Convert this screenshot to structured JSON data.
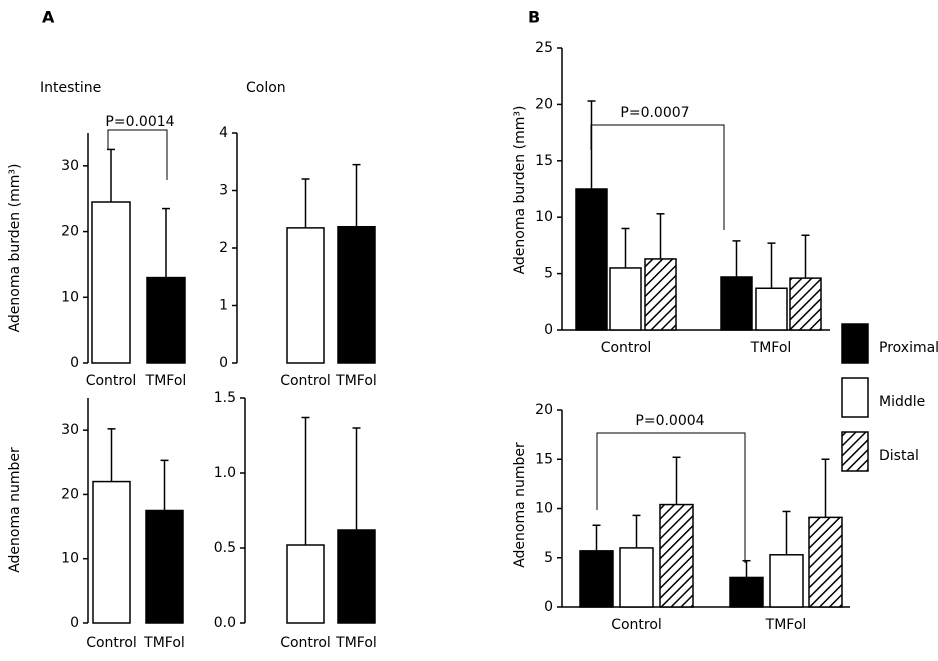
{
  "chart_data": [
    {
      "type": "bar",
      "panel_label": "A",
      "title": "Intestine",
      "ylabel": "Adenoma burden (mm³)",
      "categories": [
        "Control",
        "TMFol"
      ],
      "values": [
        24.5,
        13
      ],
      "errors": [
        8,
        10.5
      ],
      "colors": [
        "#ffffff",
        "#000000"
      ],
      "ylim": [
        0,
        35
      ],
      "yticks": [
        0,
        10,
        20,
        30
      ],
      "annotation": "P=0.0014"
    },
    {
      "type": "bar",
      "title": "Colon",
      "categories": [
        "Control",
        "TMFol"
      ],
      "values": [
        2.35,
        2.37
      ],
      "errors": [
        0.85,
        1.08
      ],
      "colors": [
        "#ffffff",
        "#000000"
      ],
      "ylim": [
        0,
        4
      ],
      "yticks": [
        0,
        1,
        2,
        3,
        4
      ]
    },
    {
      "type": "bar",
      "ylabel": "Adenoma number",
      "categories": [
        "Control",
        "TMFol"
      ],
      "values": [
        22,
        17.5
      ],
      "errors": [
        8.2,
        7.8
      ],
      "colors": [
        "#ffffff",
        "#000000"
      ],
      "ylim": [
        0,
        35
      ],
      "yticks": [
        0,
        10,
        20,
        30
      ]
    },
    {
      "type": "bar",
      "categories": [
        "Control",
        "TMFol"
      ],
      "values": [
        0.52,
        0.62
      ],
      "errors": [
        0.85,
        0.68
      ],
      "colors": [
        "#ffffff",
        "#000000"
      ],
      "ylim": [
        0,
        1.5
      ],
      "yticks": [
        {
          "value": 0,
          "label": "0.0"
        },
        {
          "value": 0.5,
          "label": "0.5"
        },
        {
          "value": 1,
          "label": "1.0"
        },
        {
          "value": 1.5,
          "label": "1.5"
        }
      ]
    },
    {
      "type": "grouped_bar",
      "panel_label": "B",
      "ylabel": "Adenoma burden (mm³)",
      "categories": [
        "Control",
        "TMFol"
      ],
      "series": [
        {
          "name": "Proximal",
          "color": "#000000",
          "values": [
            12.5,
            4.7
          ],
          "errors": [
            7.8,
            3.2
          ]
        },
        {
          "name": "Middle",
          "color": "#ffffff",
          "values": [
            5.5,
            3.7
          ],
          "errors": [
            3.5,
            4
          ]
        },
        {
          "name": "Distal",
          "color": "#ffffff",
          "hatch": true,
          "values": [
            6.3,
            4.6
          ],
          "errors": [
            4,
            3.8
          ]
        }
      ],
      "ylim": [
        0,
        25
      ],
      "yticks": [
        0,
        5,
        10,
        15,
        20,
        25
      ],
      "annotation": "P=0.0007"
    },
    {
      "type": "grouped_bar",
      "ylabel": "Adenoma number",
      "categories": [
        "Control",
        "TMFol"
      ],
      "series": [
        {
          "color": "#000000",
          "values": [
            5.7,
            3
          ],
          "errors": [
            2.6,
            1.7
          ]
        },
        {
          "color": "#ffffff",
          "values": [
            6,
            5.3
          ],
          "errors": [
            3.3,
            4.4
          ]
        },
        {
          "color": "#ffffff",
          "hatch": true,
          "values": [
            10.4,
            9.1
          ],
          "errors": [
            4.8,
            5.9
          ]
        }
      ],
      "ylim": [
        0,
        20
      ],
      "yticks": [
        0,
        5,
        10,
        15,
        20
      ],
      "annotation": "P=0.0004"
    }
  ]
}
